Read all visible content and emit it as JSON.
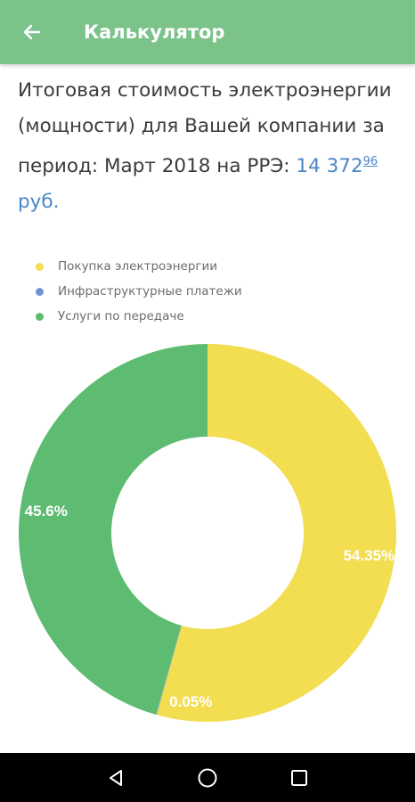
{
  "appbar": {
    "title": "Калькулятор",
    "back_icon": "arrow-left-icon",
    "color": "#7cc38a"
  },
  "summary": {
    "text": "Итоговая стоимость электроэнергии (мощности) для Вашей компании за период: Март 2018 на РРЭ:",
    "price_main": "14 372",
    "price_cents": "96",
    "currency": "руб."
  },
  "chart_data": {
    "type": "pie",
    "donut": true,
    "legend_position": "top-left",
    "series": [
      {
        "name": "Покупка электроэнергии",
        "value": 54.35,
        "label": "54.35%",
        "color": "#f3dd50"
      },
      {
        "name": "Инфраструктурные платежи",
        "value": 0.05,
        "label": "0.05%",
        "color": "#6f96d4"
      },
      {
        "name": "Услуги по передаче",
        "value": 45.6,
        "label": "45.6%",
        "color": "#5dbc72"
      }
    ]
  },
  "navbar": {
    "back_icon": "triangle-back-icon",
    "home_icon": "circle-home-icon",
    "recents_icon": "square-recents-icon"
  }
}
